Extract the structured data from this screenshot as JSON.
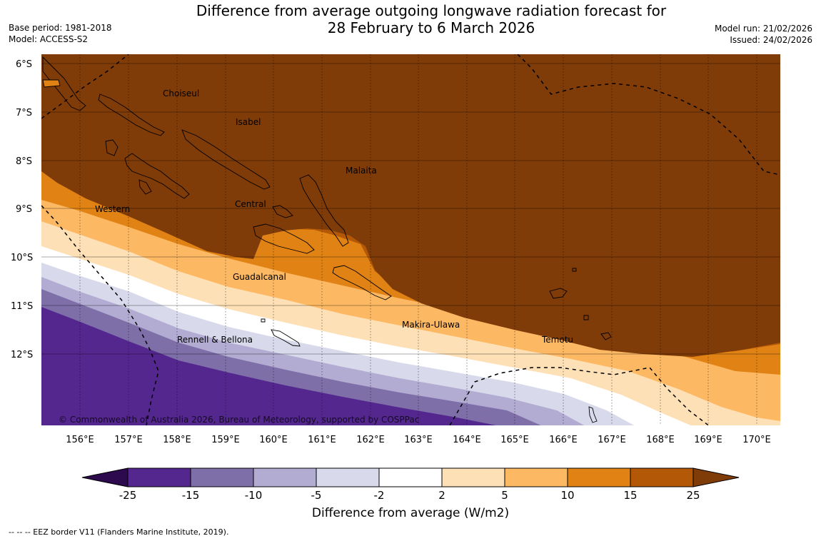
{
  "title": {
    "line1": "Difference from average outgoing longwave radiation forecast for",
    "line2": "28 February to 6 March 2026"
  },
  "meta_left": {
    "base_period": "Base period: 1981-2018",
    "model": "Model: ACCESS-S2"
  },
  "meta_right": {
    "model_run": "Model run: 21/02/2026",
    "issued": "Issued: 24/02/2026"
  },
  "axes": {
    "lat_ticks": [
      "6°S",
      "7°S",
      "8°S",
      "9°S",
      "10°S",
      "11°S",
      "12°S"
    ],
    "lon_ticks": [
      "156°E",
      "157°E",
      "158°E",
      "159°E",
      "160°E",
      "161°E",
      "162°E",
      "163°E",
      "164°E",
      "165°E",
      "166°E",
      "167°E",
      "168°E",
      "169°E",
      "170°E"
    ]
  },
  "place_labels": [
    "Choiseul",
    "Isabel",
    "Malaita",
    "Central",
    "Western",
    "Guadalcanal",
    "Makira-Ulawa",
    "Temotu",
    "Rennell & Bellona"
  ],
  "copyright": "© Commonwealth of Australia 2026, Bureau of Meteorology, supported by COSPPac",
  "colorbar": {
    "label": "Difference from average (W/m2)",
    "ticks": [
      "-25",
      "-15",
      "-10",
      "-5",
      "-2",
      "2",
      "5",
      "10",
      "15",
      "25"
    ],
    "colors": {
      "below_min": "#2d0a4e",
      "c1": "#54278f",
      "c2": "#7e6fa9",
      "c3": "#b2abd2",
      "c4": "#d8daeb",
      "c5": "#ffffff",
      "c6": "#fee0b6",
      "c7": "#fdb863",
      "c8": "#e08214",
      "c9": "#b35806",
      "above_max": "#7f3b08"
    }
  },
  "eez_note": "--  --  -- EEZ border V11 (Flanders Marine Institute, 2019)."
}
